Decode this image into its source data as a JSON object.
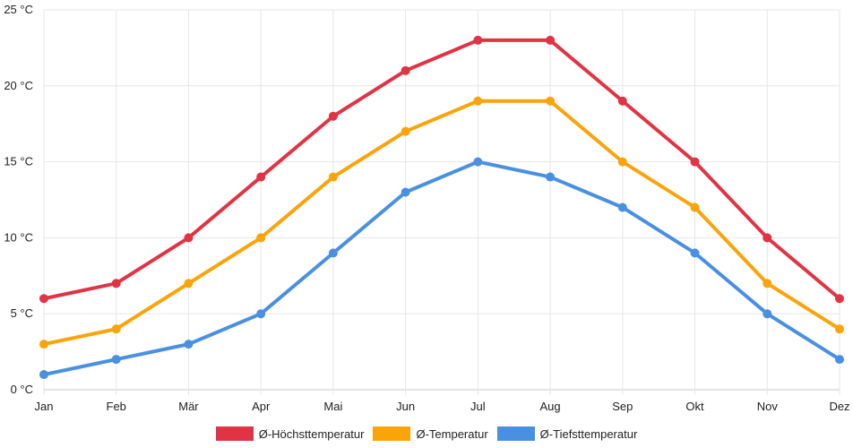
{
  "chart_data": {
    "type": "line",
    "categories": [
      "Jan",
      "Feb",
      "Mär",
      "Apr",
      "Mai",
      "Jun",
      "Jul",
      "Aug",
      "Sep",
      "Okt",
      "Nov",
      "Dez"
    ],
    "y_ticks": [
      "0 °C",
      "5 °C",
      "10 °C",
      "15 °C",
      "20 °C",
      "25 °C"
    ],
    "ylim": [
      0,
      25
    ],
    "grid": true,
    "legend_position": "bottom",
    "series": [
      {
        "name": "Ø-Höchsttemperatur",
        "color": "#e03444",
        "values": [
          6,
          7,
          10,
          14,
          18,
          21,
          23,
          23,
          19,
          15,
          10,
          6
        ]
      },
      {
        "name": "Ø-Temperatur",
        "color": "#faa40a",
        "values": [
          3,
          4,
          7,
          10,
          14,
          17,
          19,
          19,
          15,
          12,
          7,
          4
        ]
      },
      {
        "name": "Ø-Tiefsttemperatur",
        "color": "#4a90e2",
        "values": [
          1,
          2,
          3,
          5,
          9,
          13,
          15,
          14,
          12,
          9,
          5,
          2
        ]
      }
    ]
  }
}
